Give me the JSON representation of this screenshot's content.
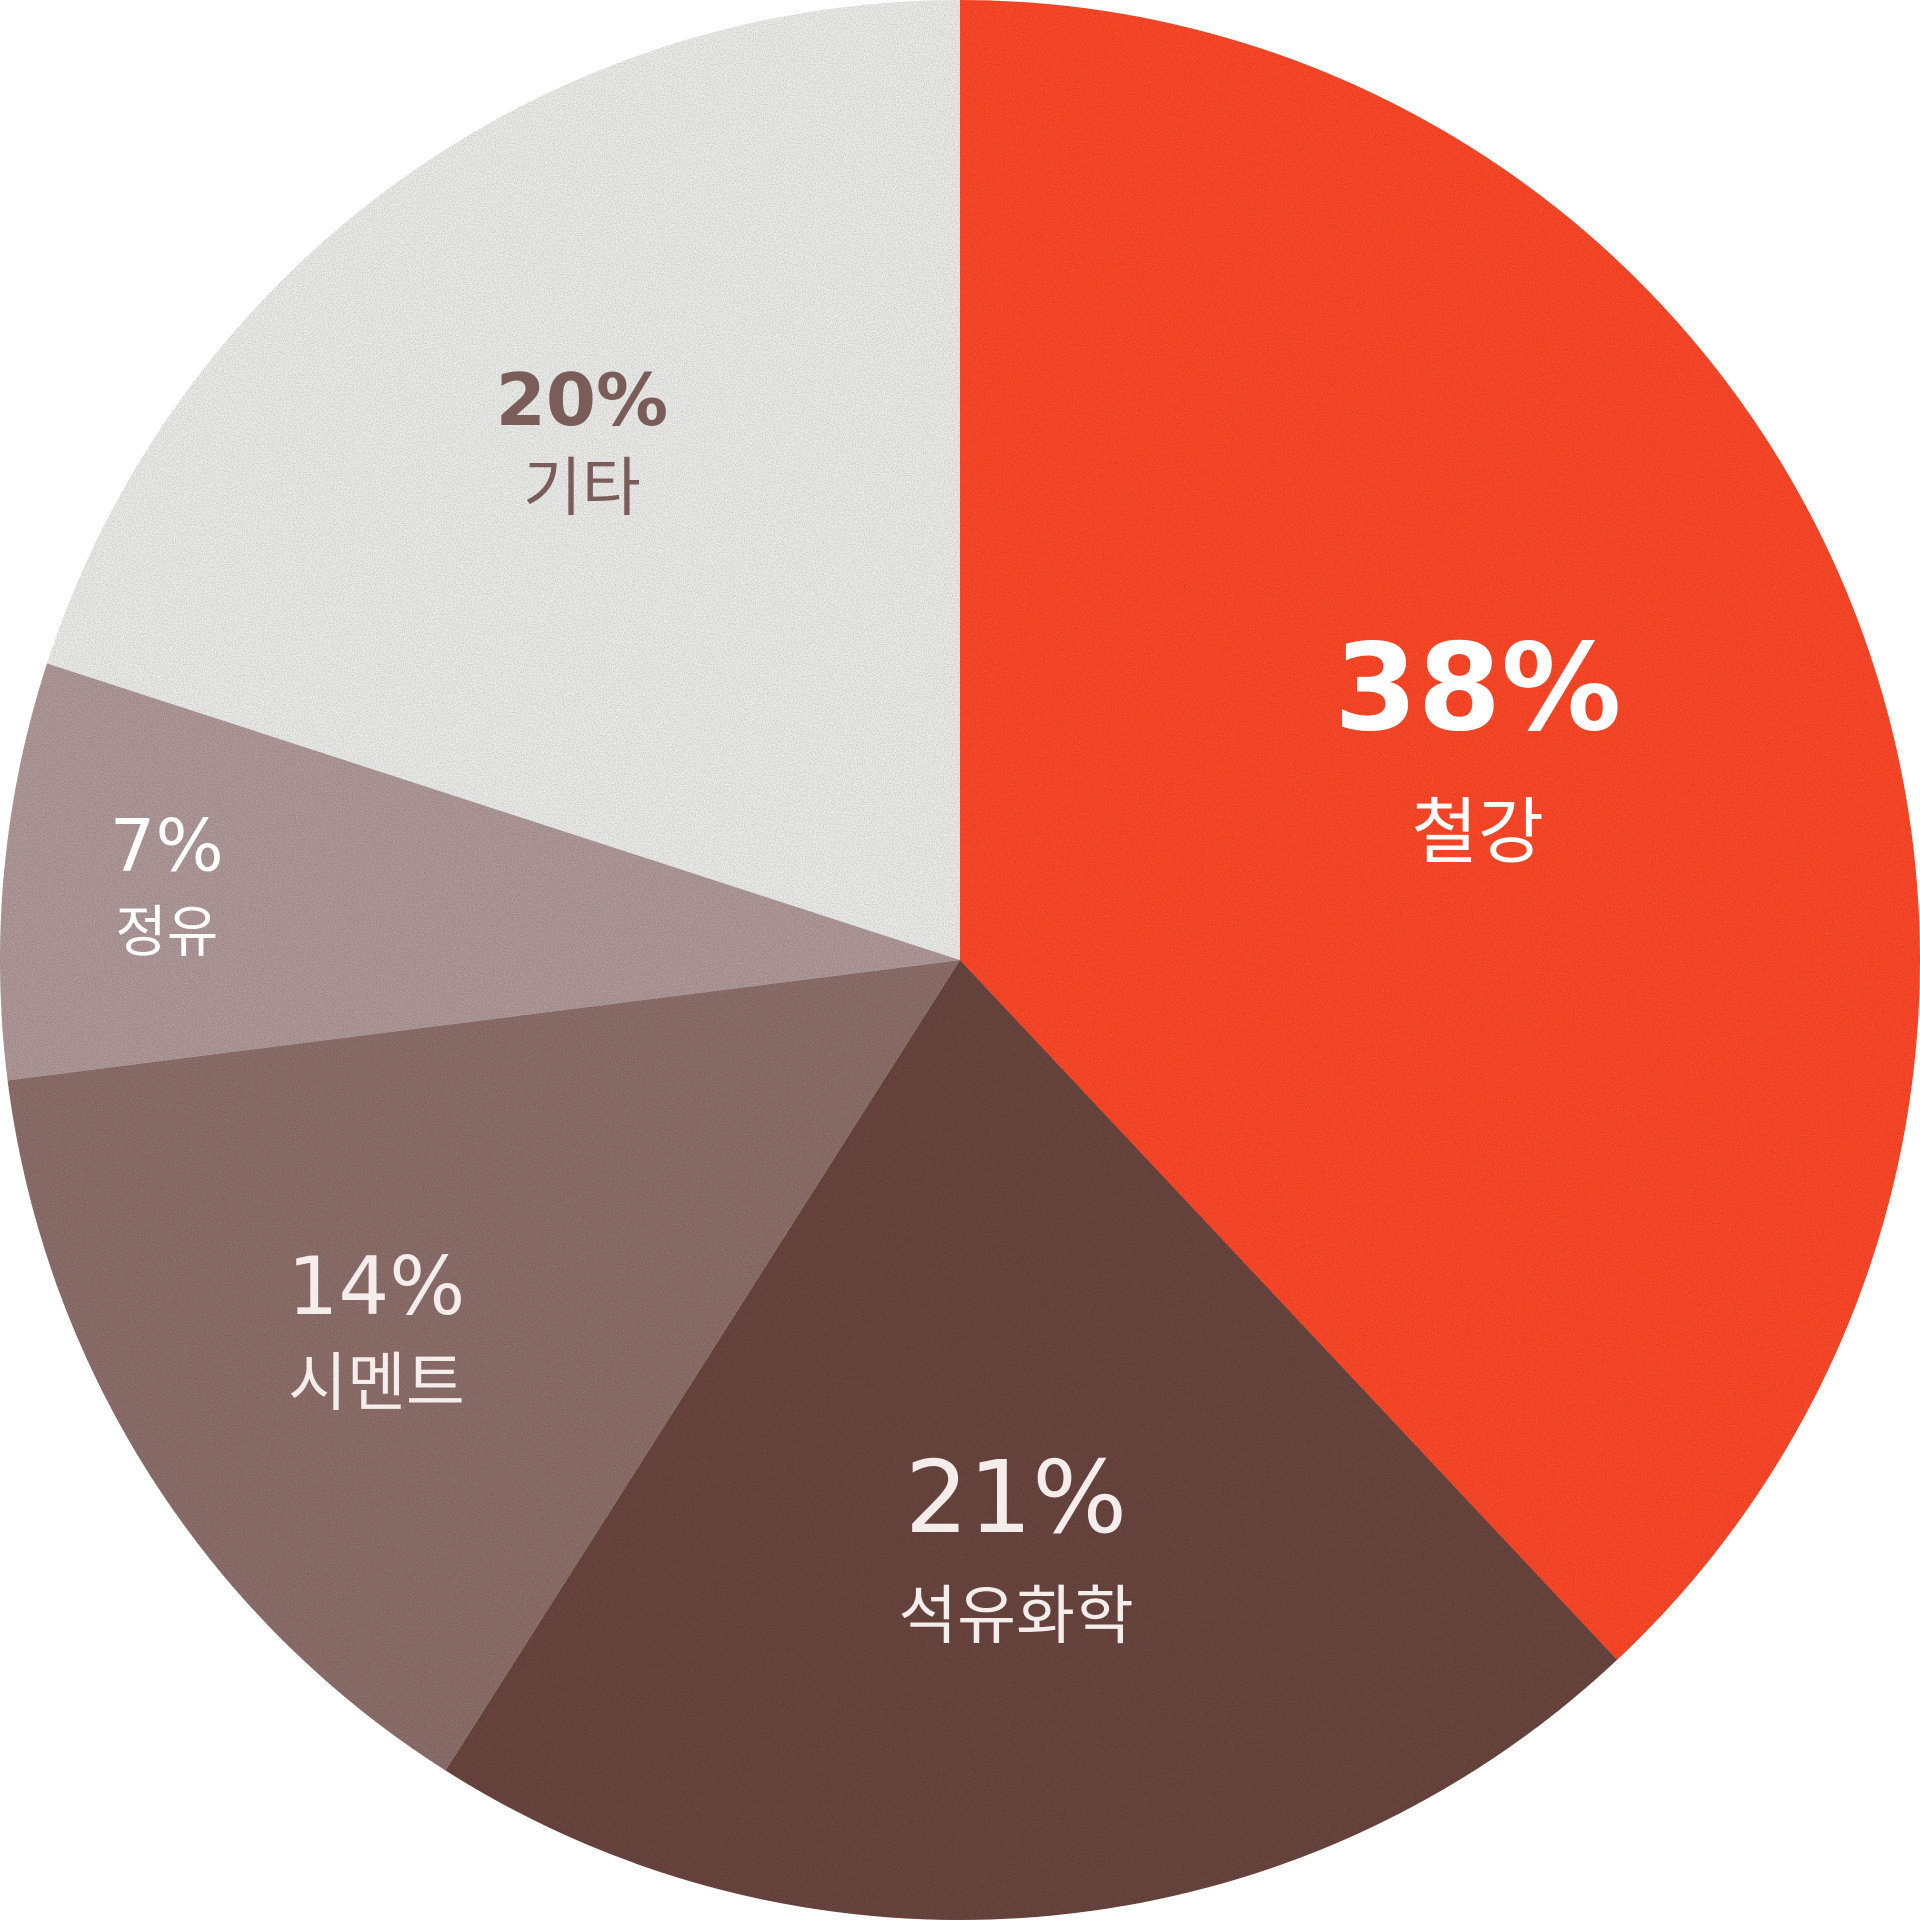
{
  "chart_data": {
    "type": "pie",
    "categories": [
      "철강",
      "석유화학",
      "시멘트",
      "정유",
      "기타"
    ],
    "values": [
      38,
      21,
      14,
      7,
      20
    ],
    "value_labels": [
      "38%",
      "21%",
      "14%",
      "7%",
      "20%"
    ],
    "colors": [
      "#ff4a2a",
      "#6b4640",
      "#8e706c",
      "#b09a9a",
      "#ededeb"
    ],
    "label_colors": [
      "#ffffff",
      "#f5ecec",
      "#f5ecec",
      "#ffffff",
      "#7a5d58"
    ],
    "start_angle": "12 o'clock",
    "direction": "clockwise",
    "legend": "none",
    "title": ""
  }
}
